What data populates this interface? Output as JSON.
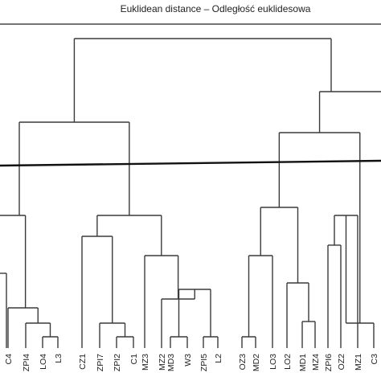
{
  "title": "Euklidean distance – Odległość euklidesowa",
  "labels": [
    "C4",
    "ZPI4",
    "LO4",
    "L3",
    "CZ1",
    "ZPI7",
    "ZPI2",
    "C1",
    "MZ3",
    "MZ2",
    "MD3",
    "W3",
    "ZPI5",
    "L2",
    "OZ3",
    "MD2",
    "LO3",
    "LO2",
    "MD1",
    "MZ4",
    "ZPI6",
    "OZ2",
    "MZ1",
    "C3"
  ],
  "colors": {
    "tree": "#3a3a3a",
    "cut_line": "#111111",
    "text": "#222222"
  }
}
